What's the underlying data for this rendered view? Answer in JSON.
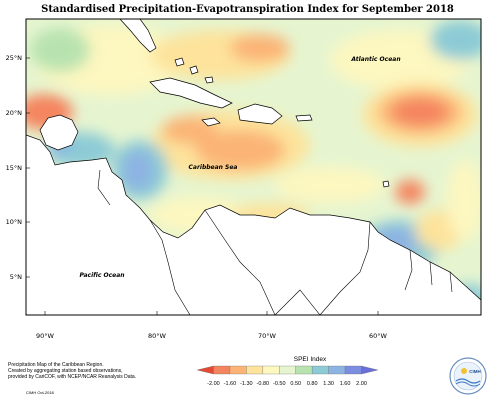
{
  "title": "Standardised Precipitation-Evapotranspiration Index for September 2018",
  "map": {
    "lat_labels": [
      "25°N",
      "20°N",
      "15°N",
      "10°N",
      "5°N"
    ],
    "lon_labels": [
      "90°W",
      "80°W",
      "70°W",
      "60°W"
    ],
    "place_labels": [
      {
        "name": "atlantic",
        "text": "Atlantic Ocean"
      },
      {
        "name": "caribbean",
        "text": "Caribbean Sea"
      },
      {
        "name": "pacific",
        "text": "Pacific Ocean"
      }
    ]
  },
  "legend": {
    "title": "SPEI Index",
    "ticks": [
      "-2.00",
      "-1.60",
      "-1.30",
      "-0.80",
      "-0.50",
      "0.50",
      "0.80",
      "1.30",
      "1.60",
      "2.00"
    ],
    "colors": [
      "#e34a33",
      "#f4845f",
      "#fbb476",
      "#fde39b",
      "#fdf7c0",
      "#e6f5d0",
      "#b8e3b0",
      "#8ccbd6",
      "#8db3e2",
      "#7b8ee0",
      "#6a6fd8"
    ]
  },
  "credits": [
    "Precipitation Map of the Caribbean Region.",
    "Created by aggregating station based observations,",
    "provided by CariCOF, with NCEP/NCAR Reanalysis Data."
  ],
  "footer": "CIMH Oct-2018",
  "logo_text": "CIMH"
}
